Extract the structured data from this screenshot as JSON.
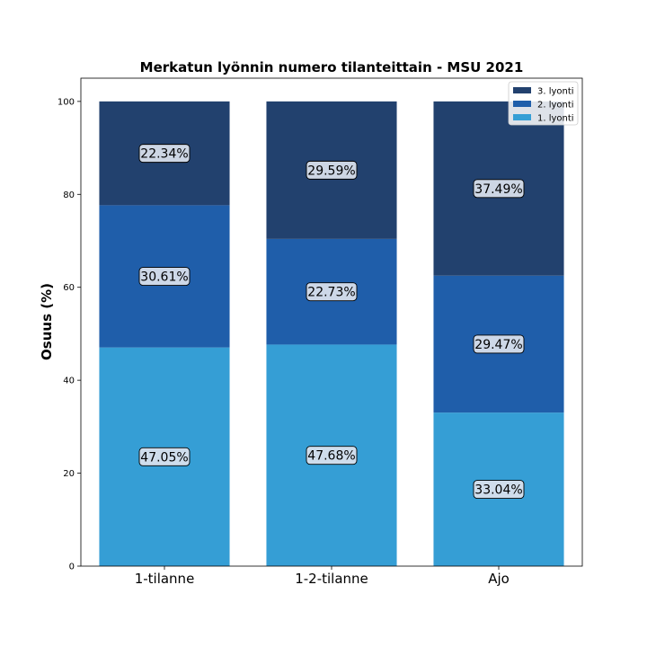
{
  "chart_data": {
    "type": "bar",
    "stacked": true,
    "title": "Merkatun lyönnin numero tilanteittain - MSU 2021",
    "xlabel": "",
    "ylabel": "Osuus (%)",
    "ylim": [
      0,
      105
    ],
    "yticks": [
      0,
      20,
      40,
      60,
      80,
      100
    ],
    "categories": [
      "1-tilanne",
      "1-2-tilanne",
      "Ajo"
    ],
    "series": [
      {
        "name": "1. lyonti",
        "color": "#359ed5",
        "values": [
          47.05,
          47.68,
          33.04
        ],
        "labels": [
          "47.05%",
          "47.68%",
          "33.04%"
        ]
      },
      {
        "name": "2. lyonti",
        "color": "#1f5eaa",
        "values": [
          30.61,
          22.73,
          29.47
        ],
        "labels": [
          "30.61%",
          "22.73%",
          "29.47%"
        ]
      },
      {
        "name": "3. lyonti",
        "color": "#22416e",
        "values": [
          22.34,
          29.59,
          37.49
        ],
        "labels": [
          "22.34%",
          "29.59%",
          "37.49%"
        ]
      }
    ],
    "legend_position": "top-right",
    "legend_order": [
      "3. lyonti",
      "2. lyonti",
      "1. lyonti"
    ],
    "grid": false
  }
}
